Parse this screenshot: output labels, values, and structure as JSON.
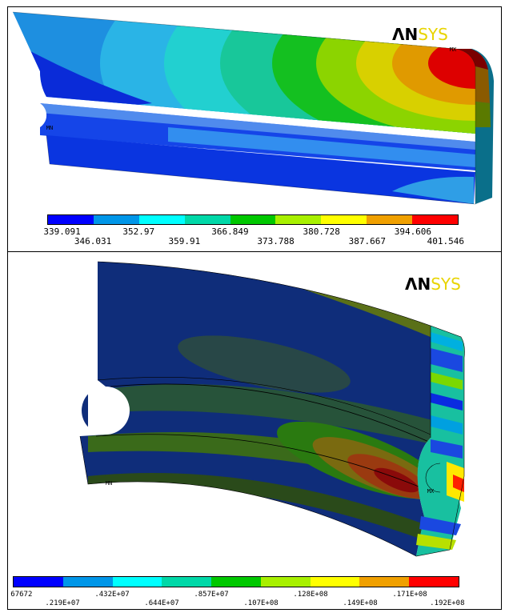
{
  "top_panel": {
    "logo": {
      "an": "ΛN",
      "sys": "SYS"
    },
    "colorbar": {
      "colors": [
        "#0000ff",
        "#0096e8",
        "#00ffff",
        "#00d8a8",
        "#00c800",
        "#a8f000",
        "#ffff00",
        "#f0a000",
        "#ff0000"
      ],
      "labels_upper": [
        "339.091",
        "352.97",
        "366.849",
        "380.728",
        "394.606"
      ],
      "labels_lower": [
        "346.031",
        "359.91",
        "373.788",
        "387.667",
        "401.546"
      ]
    },
    "markers": {
      "mx": "MX",
      "mn": "MN"
    }
  },
  "bottom_panel": {
    "logo": {
      "an": "ΛN",
      "sys": "SYS"
    },
    "colorbar": {
      "colors": [
        "#0000ff",
        "#0096e8",
        "#00ffff",
        "#00d8a8",
        "#00c800",
        "#a8f000",
        "#ffff00",
        "#f0a000",
        "#ff0000"
      ],
      "labels_upper": [
        "67672",
        ".432E+07",
        ".857E+07",
        ".128E+08",
        ".171E+08"
      ],
      "labels_lower": [
        ".219E+07",
        ".644E+07",
        ".107E+08",
        ".149E+08",
        ".192E+08"
      ]
    },
    "markers": {
      "mx": "MX",
      "mn": "MN"
    }
  }
}
